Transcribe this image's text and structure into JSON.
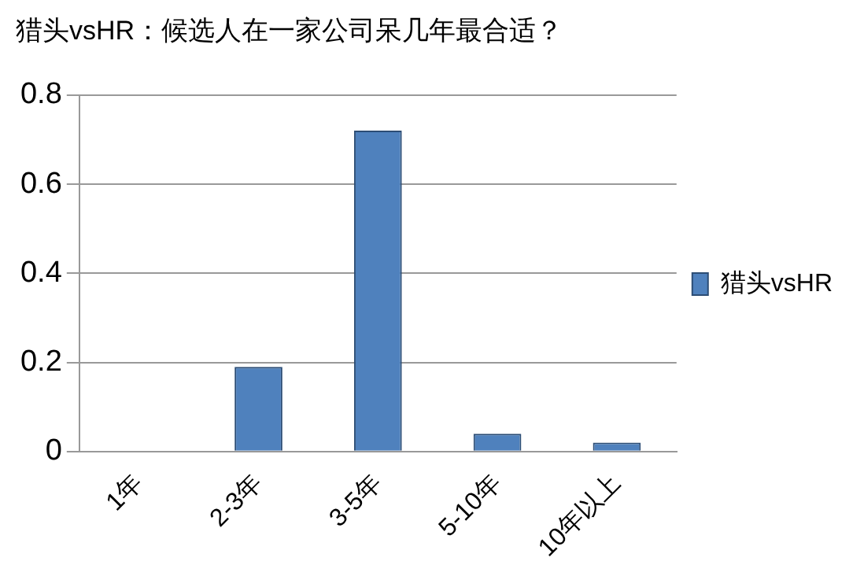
{
  "chart_data": {
    "type": "bar",
    "title": "猎头vsHR：候选人在一家公司呆几年最合适？",
    "categories": [
      "1年",
      "2-3年",
      "3-5年",
      "5-10年",
      "10年以上"
    ],
    "series": [
      {
        "name": "猎头vsHR",
        "color": "#4f81bd",
        "values": [
          0,
          0.19,
          0.72,
          0.04,
          0.02
        ]
      }
    ],
    "ylim": [
      0,
      0.8
    ],
    "yticks": [
      0,
      0.2,
      0.4,
      0.6,
      0.8
    ],
    "grid": "y",
    "legend": "right"
  }
}
